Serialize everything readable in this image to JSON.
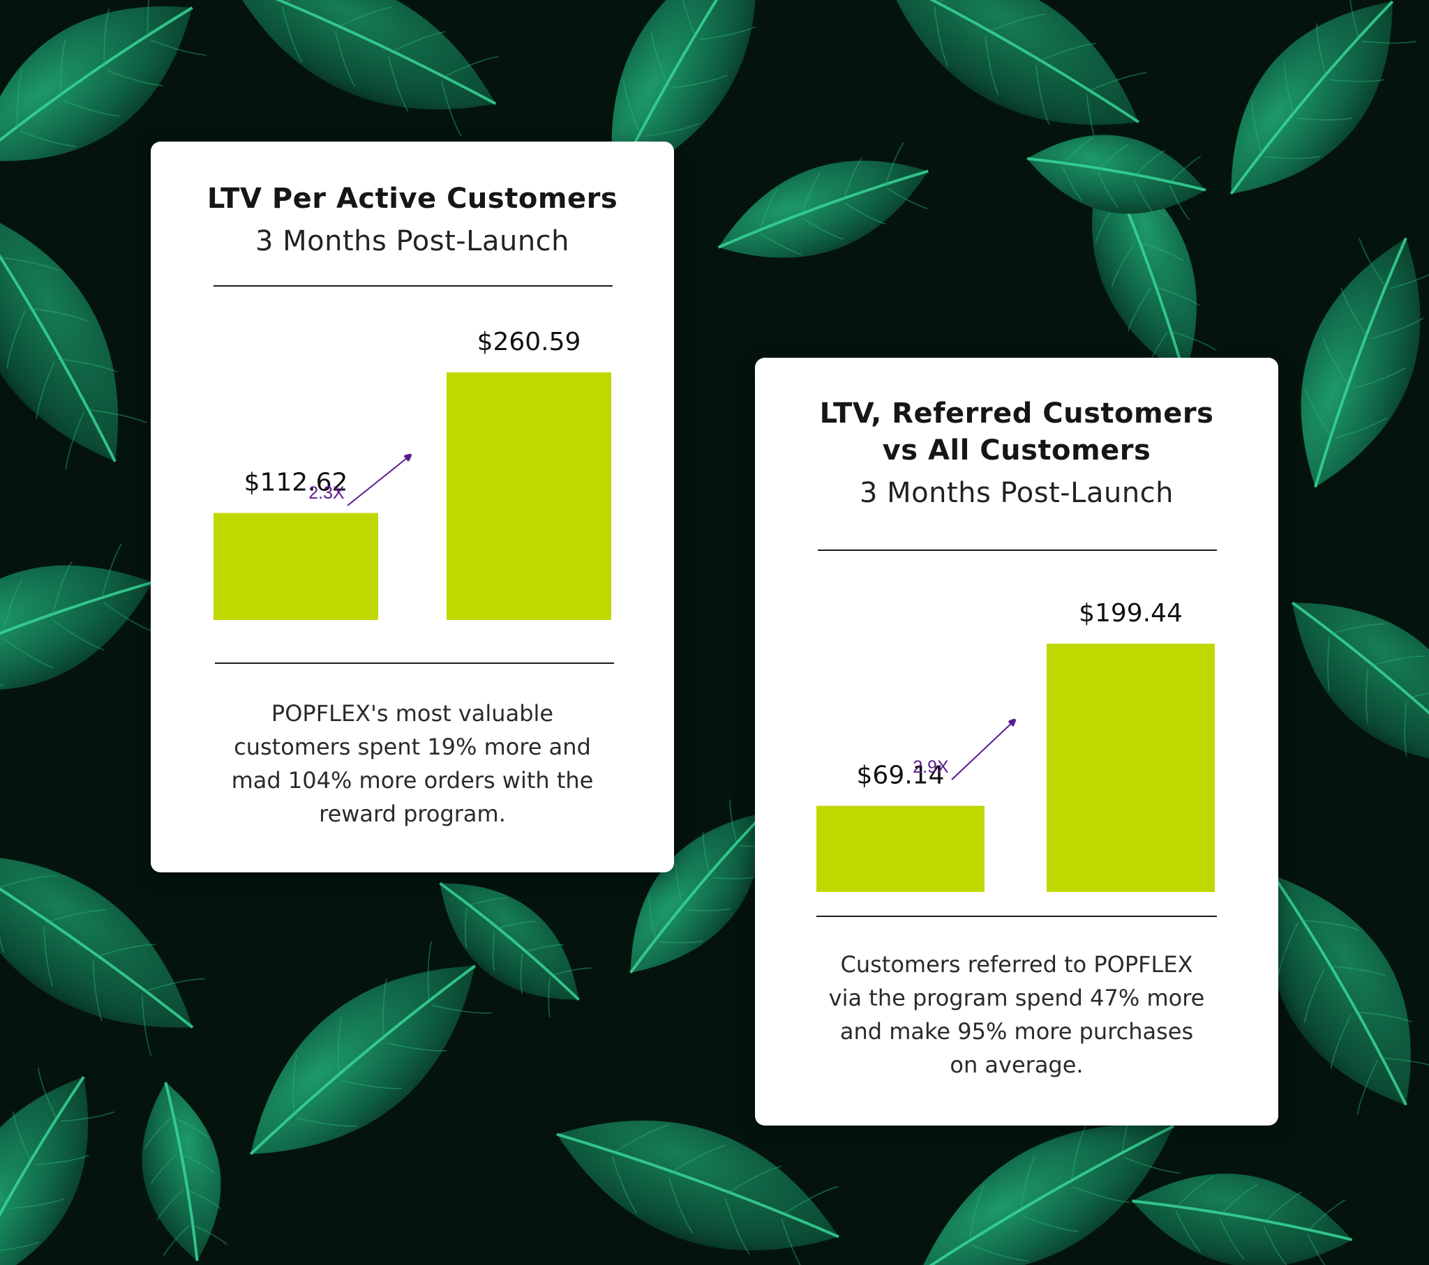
{
  "theme": {
    "bar_color": "#bfd800",
    "arrow_color": "#5b1a91",
    "text_color": "#111111"
  },
  "background": {
    "description_icon": "leaf-pattern"
  },
  "cards": [
    {
      "title": "LTV Per Active Customers",
      "subtitle": "3 Months Post-Launch",
      "caption_lines": [
        "POPFLEX's most valuable",
        "customers spent 19% more and",
        "mad 104% more orders with the",
        "reward program."
      ]
    },
    {
      "title_lines": [
        "LTV, Referred Customers",
        "vs All Customers"
      ],
      "subtitle": "3 Months Post-Launch",
      "caption_lines": [
        "Customers referred to POPFLEX",
        "via the program spend 47% more",
        "and make 95% more purchases",
        "on average."
      ]
    }
  ],
  "chart_data": [
    {
      "type": "bar",
      "categories": [
        "",
        ""
      ],
      "values": [
        112.62,
        260.59
      ],
      "value_labels": [
        "$112.62",
        "$260.59"
      ],
      "annotation": "2.3X",
      "grid": false
    },
    {
      "type": "bar",
      "categories": [
        "",
        ""
      ],
      "values": [
        69.14,
        199.44
      ],
      "value_labels": [
        "$69.14",
        "$199.44"
      ],
      "annotation": "2.9X",
      "grid": false
    }
  ]
}
